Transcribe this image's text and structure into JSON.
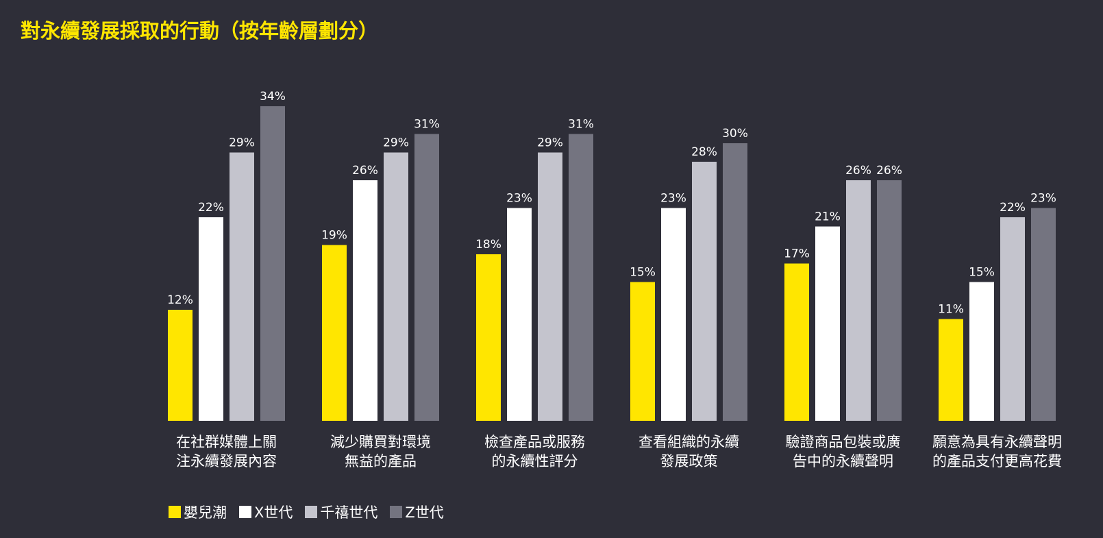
{
  "chart_data": {
    "type": "bar",
    "title": "對永續發展採取的行動（按年齡層劃分）",
    "xlabel": "",
    "ylabel": "",
    "ylim": [
      0,
      34
    ],
    "grid": false,
    "legend_position": "bottom-left",
    "categories": [
      [
        "在社群媒體上關",
        "注永續發展內容"
      ],
      [
        "減少購買對環境",
        "無益的產品"
      ],
      [
        "檢查產品或服務",
        "的永續性評分"
      ],
      [
        "查看組織的永續",
        "發展政策"
      ],
      [
        "驗證商品包裝或廣",
        "告中的永續聲明"
      ],
      [
        "願意為具有永續聲明",
        "的產品支付更高花費"
      ]
    ],
    "series": [
      {
        "name": "嬰兒潮",
        "color": "#ffe600",
        "values": [
          12,
          19,
          18,
          15,
          17,
          11
        ]
      },
      {
        "name": "X世代",
        "color": "#ffffff",
        "values": [
          22,
          26,
          23,
          23,
          21,
          15
        ]
      },
      {
        "name": "千禧世代",
        "color": "#c4c4cd",
        "values": [
          29,
          29,
          29,
          28,
          26,
          22
        ]
      },
      {
        "name": "Z世代",
        "color": "#747480",
        "values": [
          34,
          31,
          31,
          30,
          26,
          23
        ]
      }
    ],
    "value_suffix": "%"
  }
}
